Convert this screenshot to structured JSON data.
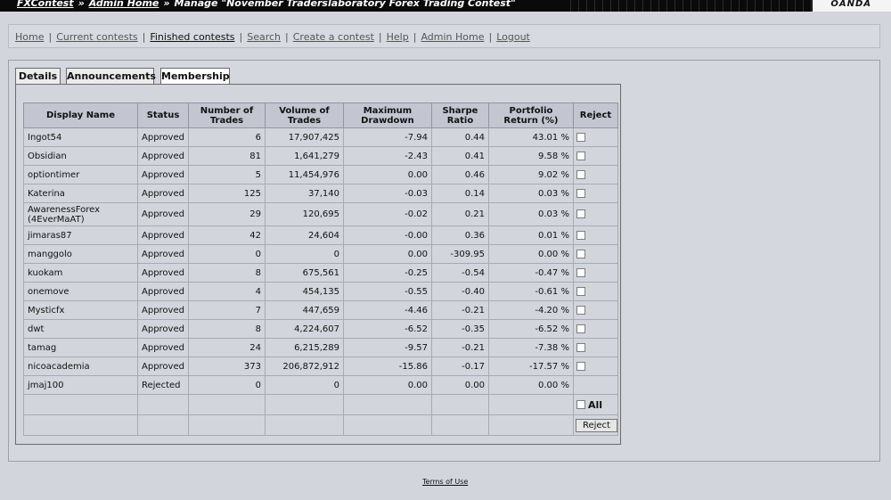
{
  "breadcrumbs": {
    "home": "FXContest",
    "admin": "Admin Home",
    "separator": "»",
    "current": "Manage \"November Traderslaboratory Forex Trading Contest\""
  },
  "brand": {
    "logo": "OANDA"
  },
  "nav": {
    "items": [
      "Home",
      "Current contests",
      "Finished contests",
      "Search",
      "Create a contest",
      "Help",
      "Admin Home",
      "Logout"
    ],
    "active": "Finished contests",
    "separator": "|"
  },
  "tabs": [
    "Details",
    "Announcements",
    "Membership"
  ],
  "active_tab": "Membership",
  "table": {
    "headers": [
      "Display Name",
      "Status",
      "Number of Trades",
      "Volume of Trades",
      "Maximum Drawdown",
      "Sharpe Ratio",
      "Portfolio Return (%)",
      "Reject"
    ],
    "rows": [
      {
        "name": "Ingot54",
        "status": "Approved",
        "trades": "6",
        "volume": "17,907,425",
        "drawdown": "-7.94",
        "sharpe": "0.44",
        "return": "43.01 %"
      },
      {
        "name": "Obsidian",
        "status": "Approved",
        "trades": "81",
        "volume": "1,641,279",
        "drawdown": "-2.43",
        "sharpe": "0.41",
        "return": "9.58 %"
      },
      {
        "name": "optiontimer",
        "status": "Approved",
        "trades": "5",
        "volume": "11,454,976",
        "drawdown": "0.00",
        "sharpe": "0.46",
        "return": "9.02 %"
      },
      {
        "name": "Katerina",
        "status": "Approved",
        "trades": "125",
        "volume": "37,140",
        "drawdown": "-0.03",
        "sharpe": "0.14",
        "return": "0.03 %"
      },
      {
        "name": "AwarenessForex",
        "name2": "(4EverMaAT)",
        "status": "Approved",
        "trades": "29",
        "volume": "120,695",
        "drawdown": "-0.02",
        "sharpe": "0.21",
        "return": "0.03 %"
      },
      {
        "name": "jimaras87",
        "status": "Approved",
        "trades": "42",
        "volume": "24,604",
        "drawdown": "-0.00",
        "sharpe": "0.36",
        "return": "0.01 %"
      },
      {
        "name": "manggolo",
        "status": "Approved",
        "trades": "0",
        "volume": "0",
        "drawdown": "0.00",
        "sharpe": "-309.95",
        "return": "0.00 %"
      },
      {
        "name": "kuokam",
        "status": "Approved",
        "trades": "8",
        "volume": "675,561",
        "drawdown": "-0.25",
        "sharpe": "-0.54",
        "return": "-0.47 %"
      },
      {
        "name": "onemove",
        "status": "Approved",
        "trades": "4",
        "volume": "454,135",
        "drawdown": "-0.55",
        "sharpe": "-0.40",
        "return": "-0.61 %"
      },
      {
        "name": "Mysticfx",
        "status": "Approved",
        "trades": "7",
        "volume": "447,659",
        "drawdown": "-4.46",
        "sharpe": "-0.21",
        "return": "-4.20 %"
      },
      {
        "name": "dwt",
        "status": "Approved",
        "trades": "8",
        "volume": "4,224,607",
        "drawdown": "-6.52",
        "sharpe": "-0.35",
        "return": "-6.52 %"
      },
      {
        "name": "tamag",
        "status": "Approved",
        "trades": "24",
        "volume": "6,215,289",
        "drawdown": "-9.57",
        "sharpe": "-0.21",
        "return": "-7.38 %"
      },
      {
        "name": "nicoacademia",
        "status": "Approved",
        "trades": "373",
        "volume": "206,872,912",
        "drawdown": "-15.86",
        "sharpe": "-0.17",
        "return": "-17.57 %"
      },
      {
        "name": "jmaj100",
        "status": "Rejected",
        "trades": "0",
        "volume": "0",
        "drawdown": "0.00",
        "sharpe": "0.00",
        "return": "0.00 %",
        "no_checkbox": true
      }
    ],
    "all_label": "All",
    "reject_button": "Reject"
  },
  "footer": {
    "terms": "Terms of Use"
  }
}
